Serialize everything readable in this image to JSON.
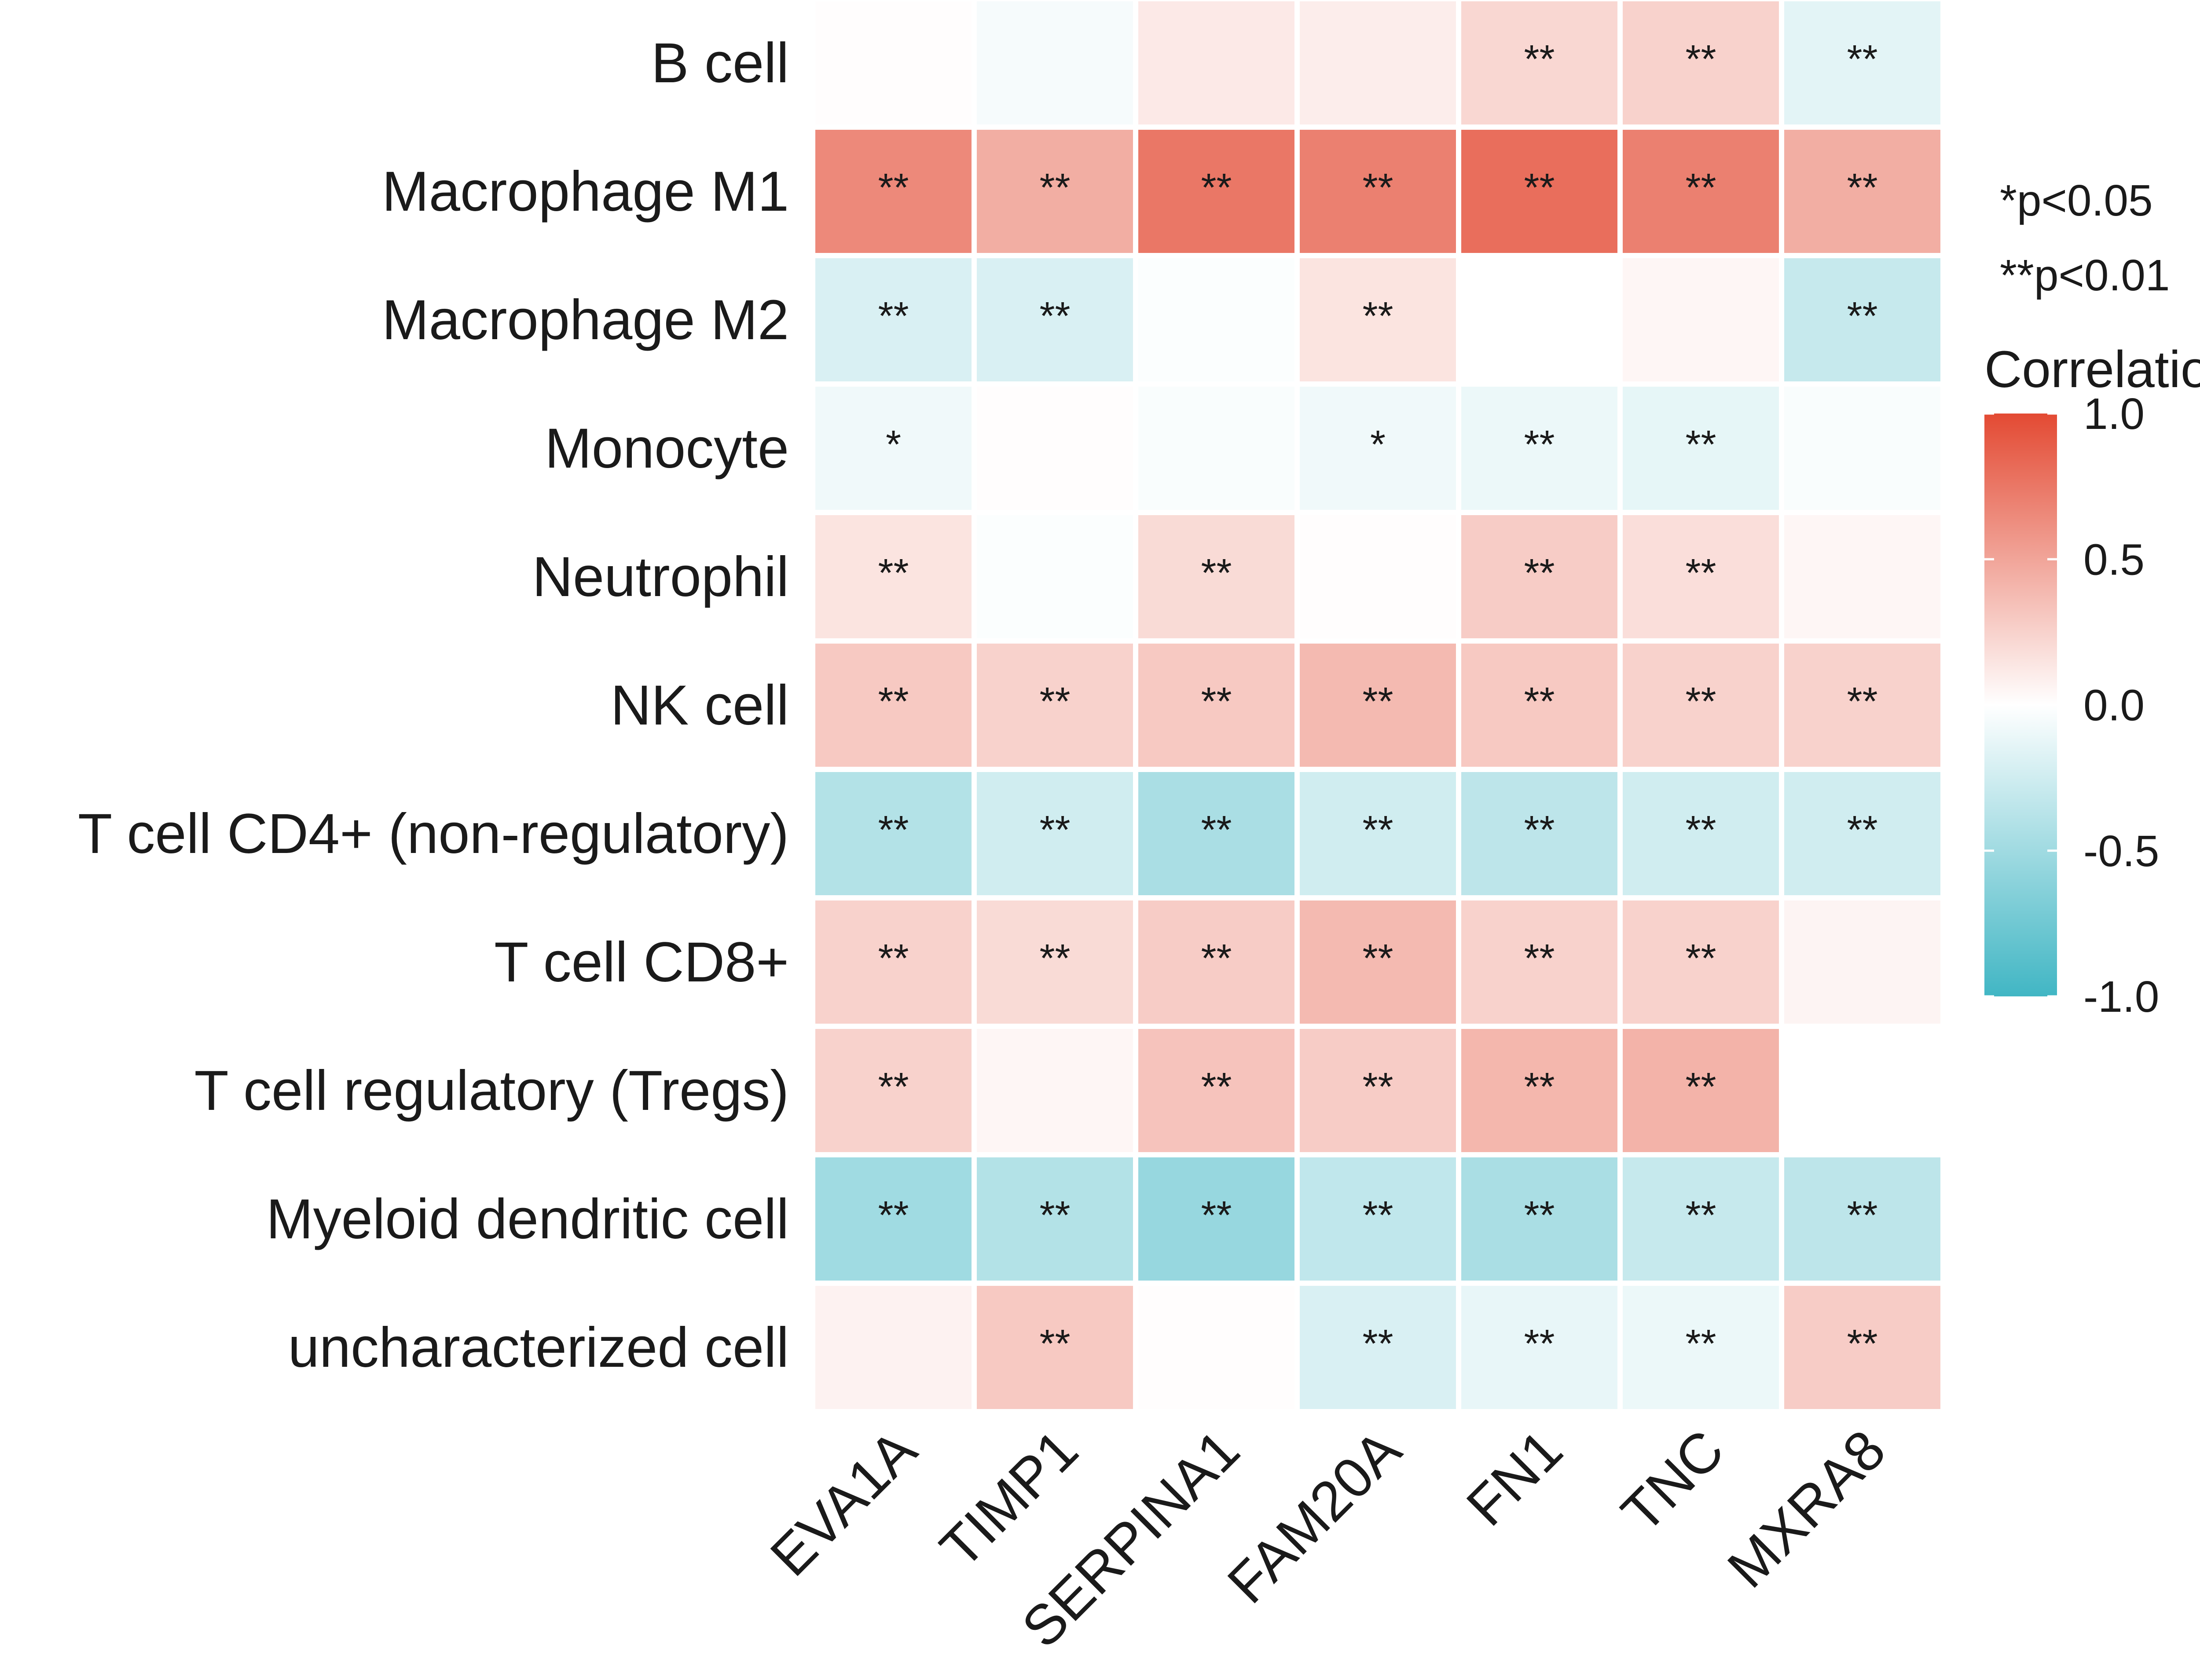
{
  "chart_data": {
    "type": "heatmap",
    "rows": [
      "B cell",
      "Macrophage M1",
      "Macrophage M2",
      "Monocyte",
      "Neutrophil",
      "NK cell",
      "T cell CD4+ (non-regulatory)",
      "T cell CD8+",
      "T cell regulatory (Tregs)",
      "Myeloid dendritic cell",
      "uncharacterized cell"
    ],
    "columns": [
      "EVA1A",
      "TIMP1",
      "SERPINA1",
      "FAM20A",
      "FN1",
      "TNC",
      "MXRA8"
    ],
    "values": [
      [
        0.01,
        -0.05,
        0.12,
        0.1,
        0.22,
        0.25,
        -0.15
      ],
      [
        0.65,
        0.45,
        0.75,
        0.7,
        0.8,
        0.7,
        0.45
      ],
      [
        -0.2,
        -0.2,
        -0.02,
        0.15,
        0.0,
        0.05,
        -0.3
      ],
      [
        -0.08,
        0.01,
        -0.03,
        -0.08,
        -0.1,
        -0.13,
        -0.03
      ],
      [
        0.15,
        -0.02,
        0.2,
        0.01,
        0.28,
        0.18,
        0.05
      ],
      [
        0.3,
        0.25,
        0.3,
        0.38,
        0.3,
        0.25,
        0.25
      ],
      [
        -0.4,
        -0.25,
        -0.45,
        -0.25,
        -0.35,
        -0.25,
        -0.25
      ],
      [
        0.25,
        0.2,
        0.28,
        0.38,
        0.25,
        0.25,
        0.06
      ],
      [
        0.25,
        0.05,
        0.33,
        0.28,
        0.4,
        0.42,
        null
      ],
      [
        -0.5,
        -0.4,
        -0.55,
        -0.33,
        -0.45,
        -0.3,
        -0.35
      ],
      [
        0.07,
        0.3,
        0.01,
        -0.2,
        -0.12,
        -0.1,
        0.28
      ]
    ],
    "significance": [
      [
        "",
        "",
        "",
        "",
        "**",
        "**",
        "**"
      ],
      [
        "**",
        "**",
        "**",
        "**",
        "**",
        "**",
        "**"
      ],
      [
        "**",
        "**",
        "",
        "**",
        "",
        "",
        "**"
      ],
      [
        "*",
        "",
        "",
        "*",
        "**",
        "**",
        ""
      ],
      [
        "**",
        "",
        "**",
        "",
        "**",
        "**",
        ""
      ],
      [
        "**",
        "**",
        "**",
        "**",
        "**",
        "**",
        "**"
      ],
      [
        "**",
        "**",
        "**",
        "**",
        "**",
        "**",
        "**"
      ],
      [
        "**",
        "**",
        "**",
        "**",
        "**",
        "**",
        ""
      ],
      [
        "**",
        "",
        "**",
        "**",
        "**",
        "**",
        ""
      ],
      [
        "**",
        "**",
        "**",
        "**",
        "**",
        "**",
        "**"
      ],
      [
        "",
        "**",
        "",
        "**",
        "**",
        "**",
        "**"
      ]
    ],
    "legend": {
      "title": "Correlation",
      "range": [
        -1.0,
        1.0
      ],
      "ticks": [
        "1.0",
        "0.5",
        "0.0",
        "-0.5",
        "-1.0"
      ],
      "tick_values": [
        1.0,
        0.5,
        0.0,
        -0.5,
        -1.0
      ],
      "notes": [
        "*p<0.05",
        "**p<0.01"
      ],
      "colors": {
        "high": "#e34a33",
        "mid": "#ffffff",
        "low": "#41b6c4"
      },
      "placement": "right"
    }
  }
}
